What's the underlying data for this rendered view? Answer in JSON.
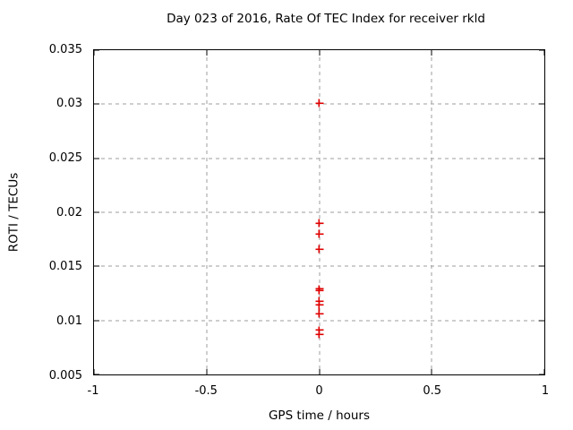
{
  "chart_data": {
    "type": "scatter",
    "title": "Day 023 of 2016, Rate Of TEC Index for receiver rkld",
    "xlabel": "GPS time / hours",
    "ylabel": "ROTI / TECUs",
    "xlim": [
      -1,
      1
    ],
    "ylim": [
      0.005,
      0.035
    ],
    "xticks": [
      -1,
      -0.5,
      0,
      0.5,
      1
    ],
    "xtick_labels": [
      "-1",
      "-0.5",
      "0",
      "0.5",
      "1"
    ],
    "yticks": [
      0.005,
      0.01,
      0.015,
      0.02,
      0.025,
      0.03,
      0.035
    ],
    "ytick_labels": [
      "0.005",
      "0.01",
      "0.015",
      "0.02",
      "0.025",
      "0.03",
      "0.035"
    ],
    "grid": true,
    "legend": "none",
    "marker": "plus",
    "marker_color": "#e00000",
    "grid_color": "#9c9c9c",
    "background_color": "#ffffff",
    "series": [
      {
        "name": "ROTI",
        "points": [
          {
            "x": 0,
            "y": 0.0301
          },
          {
            "x": 0,
            "y": 0.019
          },
          {
            "x": 0,
            "y": 0.018
          },
          {
            "x": 0,
            "y": 0.0166
          },
          {
            "x": 0,
            "y": 0.0129
          },
          {
            "x": 0,
            "y": 0.0128
          },
          {
            "x": 0,
            "y": 0.0118
          },
          {
            "x": 0,
            "y": 0.0114
          },
          {
            "x": 0,
            "y": 0.0106
          },
          {
            "x": 0,
            "y": 0.0091
          },
          {
            "x": 0,
            "y": 0.0087
          }
        ]
      }
    ]
  }
}
